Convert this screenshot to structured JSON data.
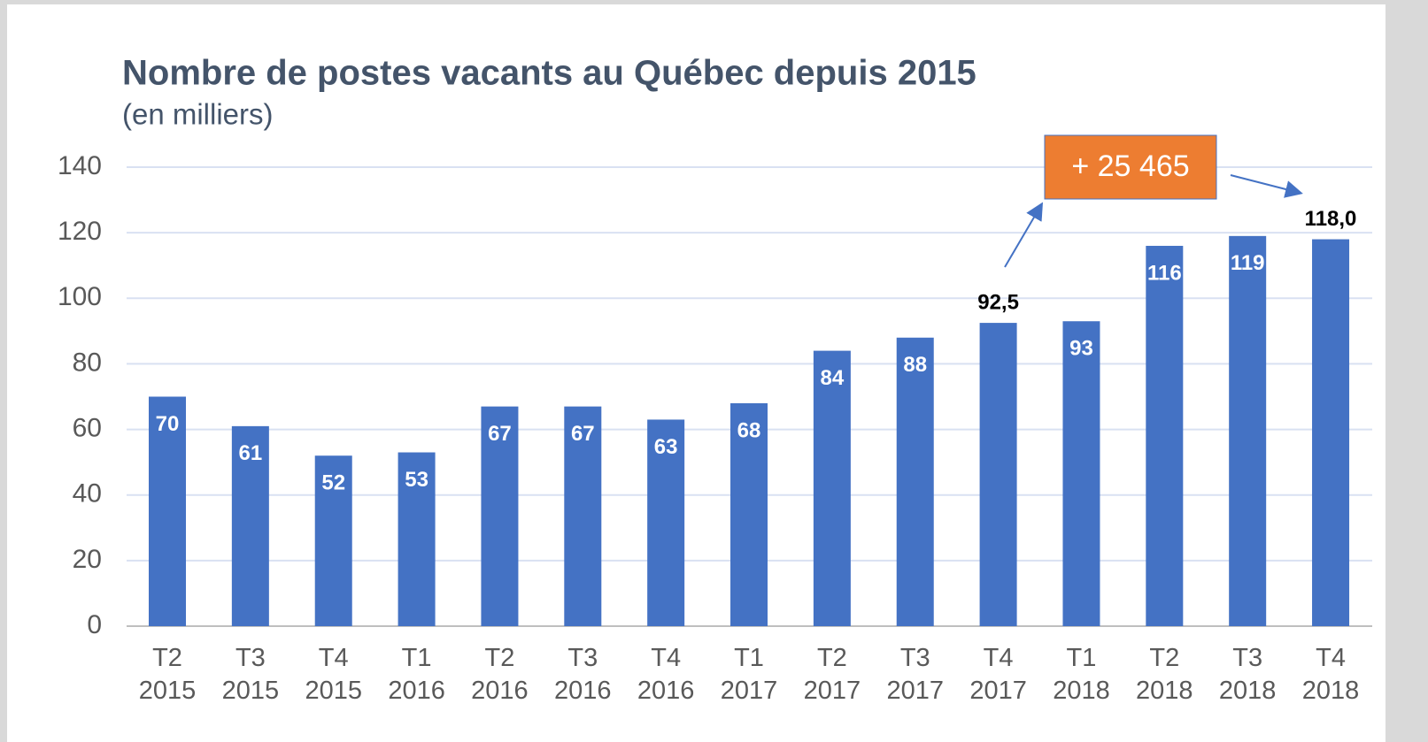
{
  "chart_data": {
    "type": "bar",
    "title": "Nombre de postes vacants au Québec depuis 2015",
    "subtitle": "(en milliers)",
    "annotation": "+ 25 465",
    "categories": [
      [
        "T2",
        "2015"
      ],
      [
        "T3",
        "2015"
      ],
      [
        "T4",
        "2015"
      ],
      [
        "T1",
        "2016"
      ],
      [
        "T2",
        "2016"
      ],
      [
        "T3",
        "2016"
      ],
      [
        "T4",
        "2016"
      ],
      [
        "T1",
        "2017"
      ],
      [
        "T2",
        "2017"
      ],
      [
        "T3",
        "2017"
      ],
      [
        "T4",
        "2017"
      ],
      [
        "T1",
        "2018"
      ],
      [
        "T2",
        "2018"
      ],
      [
        "T3",
        "2018"
      ],
      [
        "T4",
        "2018"
      ]
    ],
    "values": [
      70,
      61,
      52,
      53,
      67,
      67,
      63,
      68,
      84,
      88,
      92.5,
      93,
      116,
      119,
      118
    ],
    "value_labels": [
      "70",
      "61",
      "52",
      "53",
      "67",
      "67",
      "63",
      "68",
      "84",
      "88",
      "92,5",
      "93",
      "116",
      "119",
      "118,0"
    ],
    "color": "#4472c4",
    "ylim": [
      0,
      140
    ],
    "yticks": [
      0,
      20,
      40,
      60,
      80,
      100,
      120,
      140
    ],
    "grid": true
  }
}
